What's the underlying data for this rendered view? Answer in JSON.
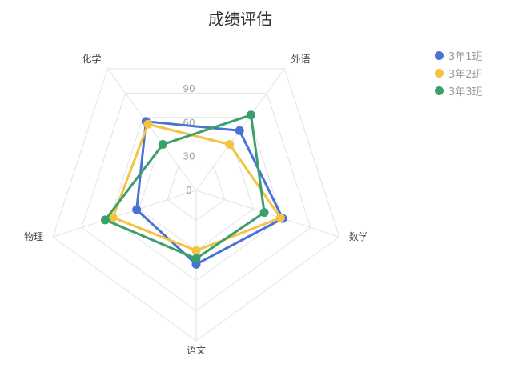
{
  "chart_data": {
    "type": "radar",
    "title": "成绩评估",
    "indicators": [
      "数学",
      "语文",
      "物理",
      "化学",
      "外语"
    ],
    "max": 90,
    "ticks": [
      0,
      30,
      60,
      90
    ],
    "legend_position": "top-right",
    "series": [
      {
        "name": "3年1班",
        "color": "#4a72d6",
        "values": [
          80,
          65,
          55,
          75,
          65
        ]
      },
      {
        "name": "3年2班",
        "color": "#f5c342",
        "values": [
          78,
          53,
          77,
          72,
          50
        ]
      },
      {
        "name": "3年3班",
        "color": "#3a9f6b",
        "values": [
          63,
          60,
          84,
          50,
          82
        ]
      }
    ]
  }
}
